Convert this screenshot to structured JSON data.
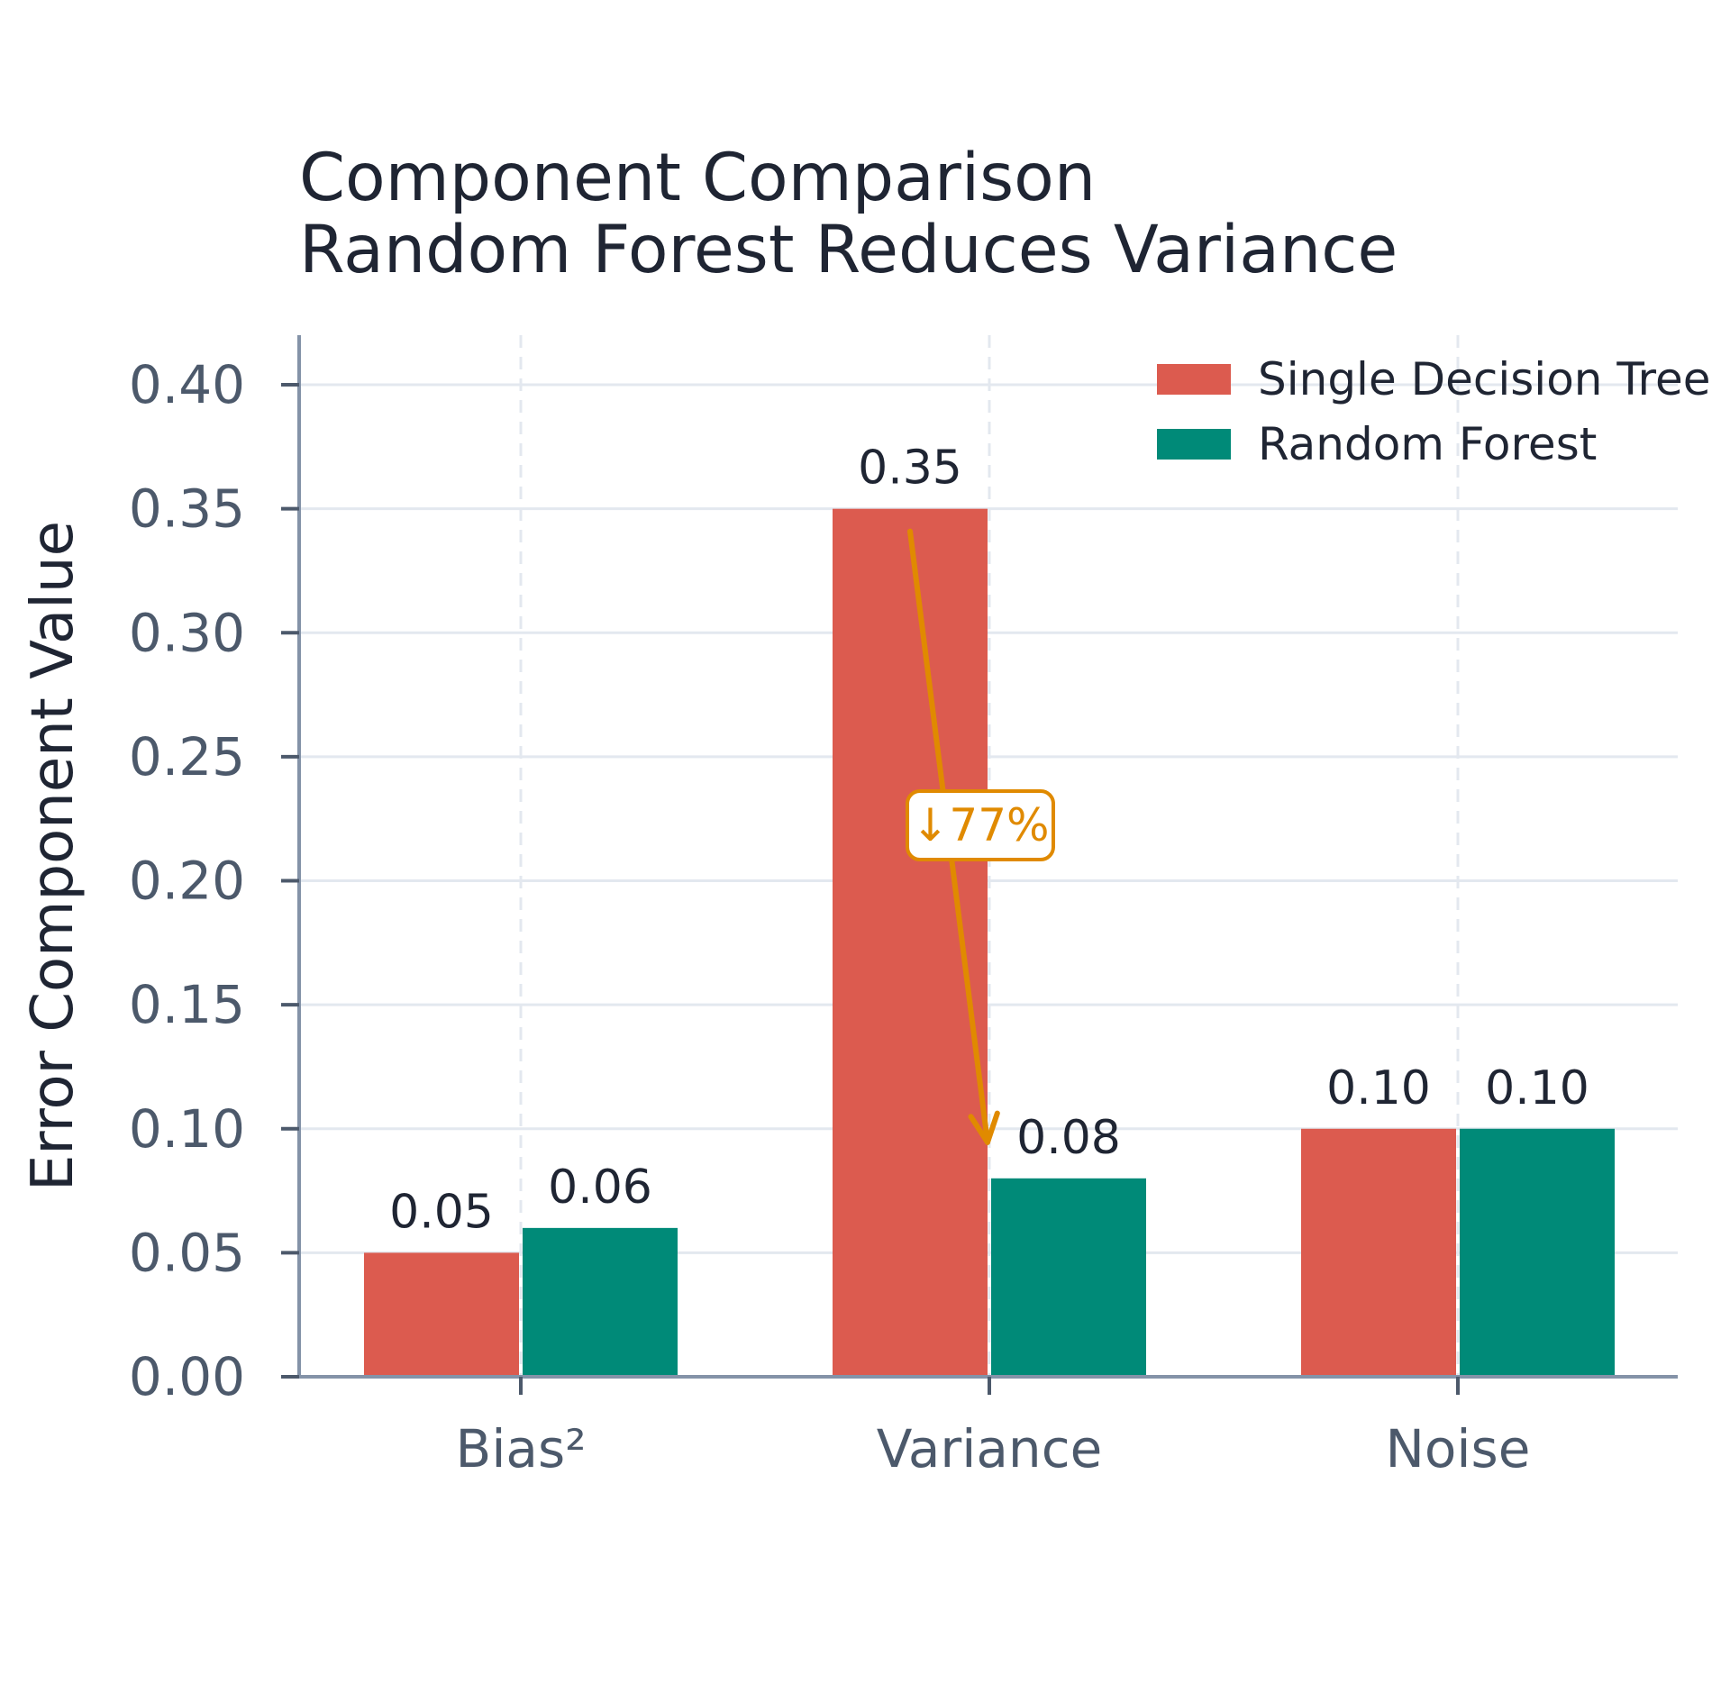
{
  "colors": {
    "series_1": "#dc5b4f",
    "series_2": "#008a78",
    "annotation": "#e08a00",
    "grid": "#e3e8ef",
    "axis": "#8493a8"
  },
  "annotation": {
    "label": "↓77%"
  },
  "chart_data": {
    "type": "bar",
    "title_lines": [
      "Component Comparison",
      "Random Forest Reduces Variance"
    ],
    "xlabel": "",
    "ylabel": "Error Component Value",
    "categories": [
      "Bias²",
      "Variance",
      "Noise"
    ],
    "series": [
      {
        "name": "Single Decision Tree",
        "values": [
          0.05,
          0.35,
          0.1
        ],
        "labels": [
          "0.05",
          "0.35",
          "0.10"
        ]
      },
      {
        "name": "Random Forest",
        "values": [
          0.06,
          0.08,
          0.1
        ],
        "labels": [
          "0.06",
          "0.08",
          "0.10"
        ]
      }
    ],
    "ylim": [
      0,
      0.42
    ],
    "yticks": [
      "0.00",
      "0.05",
      "0.10",
      "0.15",
      "0.20",
      "0.25",
      "0.30",
      "0.35",
      "0.40"
    ],
    "ytick_values": [
      0,
      0.05,
      0.1,
      0.15,
      0.2,
      0.25,
      0.3,
      0.35,
      0.4
    ],
    "grid": true,
    "legend_position": "top-right"
  }
}
